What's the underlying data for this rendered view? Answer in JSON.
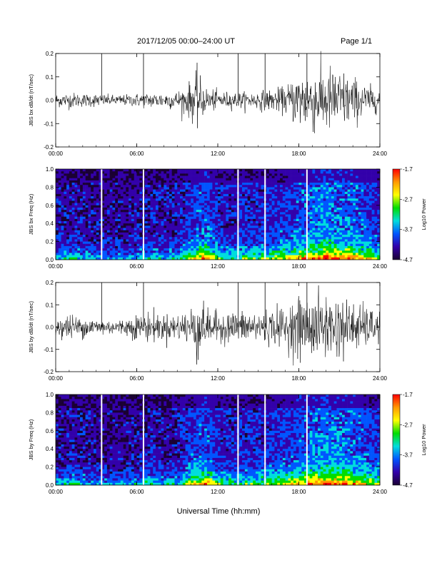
{
  "header": {
    "title": "2017/12/05   00:00–24:00 UT",
    "page": "Page 1/1"
  },
  "chart_data": [
    {
      "type": "line",
      "ylabel": "JBS bx dB/dt (nT/sec)",
      "xlim": [
        0,
        24
      ],
      "ylim": [
        -0.2,
        0.2
      ],
      "xtick_labels": [
        "00:00",
        "06:00",
        "12:00",
        "18:00",
        "24:00"
      ],
      "ytick_labels": [
        "0.2",
        "0.1",
        "0.0",
        "-0.1",
        "-0.2"
      ],
      "ytick_values": [
        0.2,
        0.1,
        0.0,
        -0.1,
        -0.2
      ],
      "spikes_hours": [
        3.4,
        6.5,
        13.5,
        15.5,
        18.6
      ],
      "activity_envelope": {
        "hours": [
          0,
          1,
          2,
          3,
          4,
          5,
          6,
          7,
          8,
          9,
          10,
          10.5,
          11,
          12,
          13,
          14,
          15,
          16,
          17,
          17.5,
          18,
          19,
          20,
          21,
          22,
          23,
          24
        ],
        "amplitude": [
          0.025,
          0.03,
          0.025,
          0.025,
          0.02,
          0.02,
          0.025,
          0.03,
          0.03,
          0.035,
          0.07,
          0.11,
          0.05,
          0.035,
          0.03,
          0.03,
          0.035,
          0.04,
          0.05,
          0.08,
          0.11,
          0.12,
          0.13,
          0.12,
          0.09,
          0.06,
          0.04
        ]
      }
    },
    {
      "type": "heatmap",
      "ylabel": "JBS bx Freq (Hz)",
      "xlim": [
        0,
        24
      ],
      "ylim": [
        0,
        1
      ],
      "xtick_labels": [
        "00:00",
        "06:00",
        "12:00",
        "18:00",
        "24:00"
      ],
      "ytick_labels": [
        "1.0",
        "0.8",
        "0.6",
        "0.4",
        "0.2",
        "0.0"
      ],
      "ytick_values": [
        1.0,
        0.8,
        0.6,
        0.4,
        0.2,
        0.0
      ],
      "gap_hours": [
        3.4,
        6.5,
        13.5,
        15.5,
        18.6
      ],
      "colorbar_label": "Log10 Power",
      "colorbar_ticks": [
        "-1.7",
        "-2.7",
        "-3.7",
        "-4.7"
      ],
      "colorbar_values": [
        -1.7,
        -2.7,
        -3.7,
        -4.7
      ],
      "colorbar_colors": [
        "#ff0000",
        "#ff9900",
        "#ffff00",
        "#00dd00",
        "#00dddd",
        "#0055ff",
        "#3300aa",
        "#1a0033"
      ]
    },
    {
      "type": "line",
      "ylabel": "JBS by dB/dt (nT/sec)",
      "xlim": [
        0,
        24
      ],
      "ylim": [
        -0.2,
        0.2
      ],
      "xtick_labels": [
        "00:00",
        "06:00",
        "12:00",
        "18:00",
        "24:00"
      ],
      "ytick_labels": [
        "0.2",
        "0.1",
        "0.0",
        "-0.1",
        "-0.2"
      ],
      "ytick_values": [
        0.2,
        0.1,
        0.0,
        -0.1,
        -0.2
      ],
      "spikes_hours": [
        3.4,
        6.5,
        13.5,
        15.5,
        18.6
      ],
      "activity_envelope": {
        "hours": [
          0,
          1,
          2,
          3,
          4,
          5,
          6,
          7,
          8,
          9,
          10,
          10.5,
          11,
          12,
          13,
          14,
          15,
          16,
          17,
          17.5,
          18,
          19,
          20,
          21,
          22,
          23,
          24
        ],
        "amplitude": [
          0.04,
          0.05,
          0.04,
          0.035,
          0.03,
          0.03,
          0.05,
          0.06,
          0.05,
          0.05,
          0.08,
          0.15,
          0.07,
          0.06,
          0.06,
          0.06,
          0.065,
          0.07,
          0.08,
          0.1,
          0.12,
          0.12,
          0.13,
          0.12,
          0.1,
          0.08,
          0.06
        ]
      }
    },
    {
      "type": "heatmap",
      "ylabel": "JBS by Freq (Hz)",
      "xlim": [
        0,
        24
      ],
      "ylim": [
        0,
        1
      ],
      "xtick_labels": [
        "00:00",
        "06:00",
        "12:00",
        "18:00",
        "24:00"
      ],
      "ytick_labels": [
        "1.0",
        "0.8",
        "0.6",
        "0.4",
        "0.2",
        "0.0"
      ],
      "ytick_values": [
        1.0,
        0.8,
        0.6,
        0.4,
        0.2,
        0.0
      ],
      "gap_hours": [
        3.4,
        6.5,
        13.5,
        15.5,
        18.6
      ],
      "colorbar_label": "Log10 Power",
      "colorbar_ticks": [
        "-1.7",
        "-2.7",
        "-3.7",
        "-4.7"
      ],
      "colorbar_values": [
        -1.7,
        -2.7,
        -3.7,
        -4.7
      ],
      "colorbar_colors": [
        "#ff0000",
        "#ff9900",
        "#ffff00",
        "#00dd00",
        "#00dddd",
        "#0055ff",
        "#3300aa",
        "#1a0033"
      ]
    }
  ],
  "xlabel": "Universal Time (hh:mm)"
}
